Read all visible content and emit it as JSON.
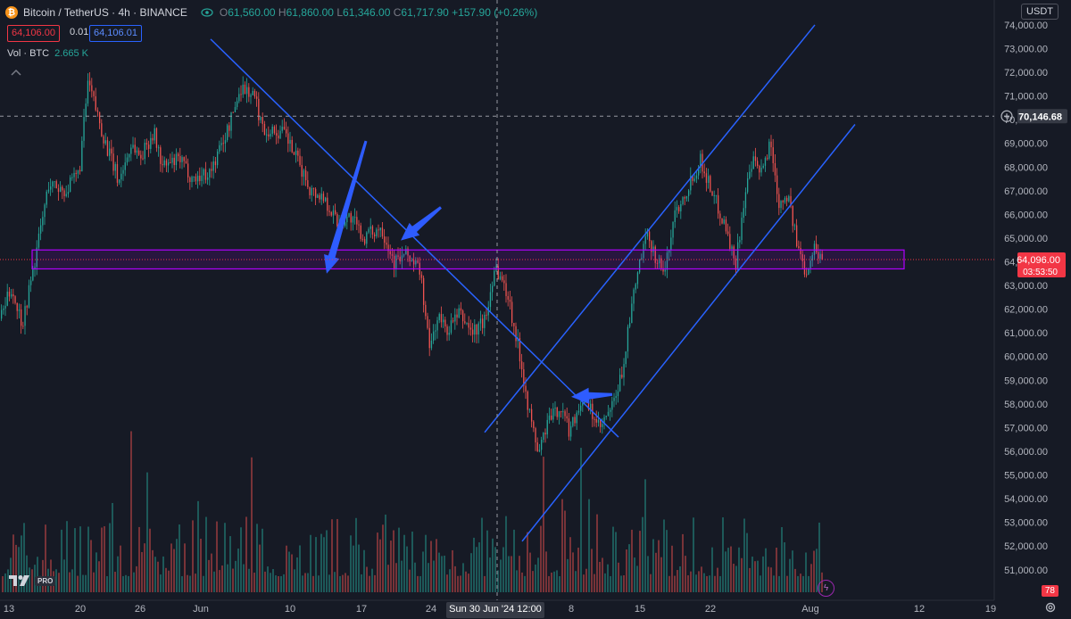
{
  "header": {
    "symbol": "Bitcoin / TetherUS · 4h · BINANCE",
    "open_label": "O",
    "open": "61,560.00",
    "high_label": "H",
    "high": "61,860.00",
    "low_label": "L",
    "low": "61,346.00",
    "close_label": "C",
    "close": "61,717.90",
    "change": "+157.90 (+0.26%)"
  },
  "trade": {
    "sell": "64,106.00",
    "spread": "0.01",
    "buy": "64,106.01"
  },
  "volume": {
    "label": "Vol · BTC",
    "value": "2.665 K"
  },
  "currency": "USDT",
  "logo": {
    "pro": "PRO"
  },
  "badge": "78",
  "colors": {
    "up": "#26a69a",
    "down": "#ef5350",
    "trendline": "#2962ff",
    "zone": "#b000ff",
    "bg": "#161a25",
    "last_price": "#f23645"
  },
  "icons": [
    "bitcoin-icon",
    "eye-icon",
    "collapse-icon",
    "plus-circle-icon",
    "lightning-icon",
    "gear-icon",
    "tradingview-logo"
  ],
  "chart_data": {
    "type": "candlestick",
    "interval": "4h",
    "ylim": [
      50200,
      74600
    ],
    "y_ticks": [
      "74,000.00",
      "73,000.00",
      "72,000.00",
      "71,000.00",
      "70,000.00",
      "69,000.00",
      "68,000.00",
      "67,000.00",
      "66,000.00",
      "65,000.00",
      "64,000.00",
      "63,000.00",
      "62,000.00",
      "61,000.00",
      "60,000.00",
      "59,000.00",
      "58,000.00",
      "57,000.00",
      "56,000.00",
      "55,000.00",
      "54,000.00",
      "53,000.00",
      "52,000.00",
      "51,000.00"
    ],
    "x_ticks": [
      "13",
      "20",
      "26",
      "Jun",
      "10",
      "17",
      "24",
      "8",
      "15",
      "22",
      "Aug",
      "12",
      "19"
    ],
    "crosshair": {
      "time_label": "Sun 30 Jun '24  12:00",
      "price_label": "70,146.68",
      "price": 70146.68
    },
    "last_price": {
      "value": "64,096.00",
      "countdown": "03:53:50",
      "price": 64096
    },
    "price_path": [
      [
        0,
        61600
      ],
      [
        0.012,
        62900
      ],
      [
        0.025,
        61400
      ],
      [
        0.04,
        64200
      ],
      [
        0.055,
        67300
      ],
      [
        0.075,
        67000
      ],
      [
        0.09,
        67800
      ],
      [
        0.1,
        71600
      ],
      [
        0.12,
        69000
      ],
      [
        0.135,
        67400
      ],
      [
        0.15,
        69000
      ],
      [
        0.16,
        68400
      ],
      [
        0.175,
        69500
      ],
      [
        0.185,
        68000
      ],
      [
        0.205,
        68300
      ],
      [
        0.22,
        67500
      ],
      [
        0.24,
        67800
      ],
      [
        0.26,
        69600
      ],
      [
        0.275,
        71400
      ],
      [
        0.29,
        71000
      ],
      [
        0.3,
        69600
      ],
      [
        0.325,
        69400
      ],
      [
        0.34,
        68200
      ],
      [
        0.355,
        67000
      ],
      [
        0.37,
        66700
      ],
      [
        0.385,
        65700
      ],
      [
        0.4,
        65900
      ],
      [
        0.415,
        65000
      ],
      [
        0.435,
        65500
      ],
      [
        0.45,
        64000
      ],
      [
        0.465,
        64300
      ],
      [
        0.48,
        63600
      ],
      [
        0.49,
        60300
      ],
      [
        0.5,
        61700
      ],
      [
        0.51,
        61100
      ],
      [
        0.525,
        61800
      ],
      [
        0.54,
        61000
      ],
      [
        0.555,
        61600
      ],
      [
        0.565,
        63900
      ],
      [
        0.58,
        62600
      ],
      [
        0.595,
        59800
      ],
      [
        0.605,
        57500
      ],
      [
        0.615,
        55900
      ],
      [
        0.625,
        57200
      ],
      [
        0.64,
        57900
      ],
      [
        0.65,
        56900
      ],
      [
        0.665,
        58200
      ],
      [
        0.675,
        57700
      ],
      [
        0.685,
        56900
      ],
      [
        0.7,
        57900
      ],
      [
        0.71,
        59200
      ],
      [
        0.72,
        61700
      ],
      [
        0.73,
        63900
      ],
      [
        0.74,
        65100
      ],
      [
        0.75,
        64100
      ],
      [
        0.76,
        63600
      ],
      [
        0.77,
        66000
      ],
      [
        0.785,
        67100
      ],
      [
        0.8,
        68300
      ],
      [
        0.815,
        66800
      ],
      [
        0.83,
        65400
      ],
      [
        0.84,
        63800
      ],
      [
        0.85,
        66600
      ],
      [
        0.86,
        68200
      ],
      [
        0.87,
        67700
      ],
      [
        0.88,
        69100
      ],
      [
        0.89,
        66500
      ],
      [
        0.9,
        66900
      ],
      [
        0.91,
        64800
      ],
      [
        0.92,
        63600
      ],
      [
        0.93,
        64600
      ],
      [
        0.94,
        64100
      ]
    ],
    "lines": [
      {
        "name": "descending-trendline",
        "from": [
          "May 20",
          73400
        ],
        "to": [
          "Jul 10",
          56600
        ]
      },
      {
        "name": "channel-upper",
        "from": [
          "Jun 30",
          56800
        ],
        "to": [
          "Aug 1",
          74000
        ]
      },
      {
        "name": "channel-lower",
        "from": [
          "Jul 3",
          52200
        ],
        "to": [
          "Aug 3",
          69800
        ]
      }
    ],
    "zone": {
      "low": 63700,
      "high": 64500
    },
    "arrows": [
      {
        "tip": [
          63500,
          69100
        ]
      },
      {
        "tip": [
          64900,
          66300
        ]
      },
      {
        "tip": [
          58300,
          58400
        ]
      }
    ]
  }
}
